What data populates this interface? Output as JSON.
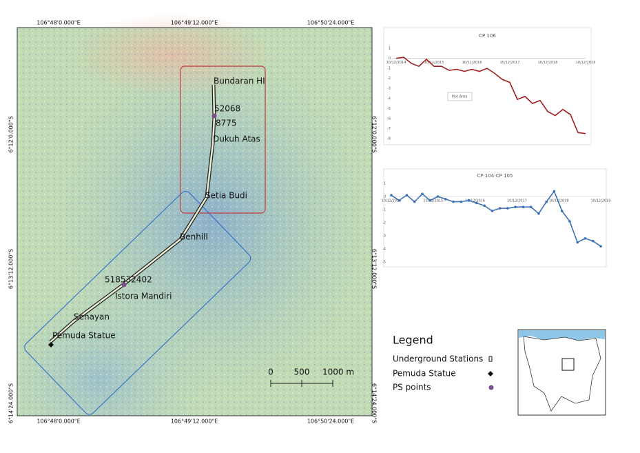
{
  "map": {
    "top_labels": [
      "106°48'0.000\"E",
      "106°49'12.000\"E",
      "106°50'24.000\"E"
    ],
    "bottom_labels": [
      "106°48'0.000\"E",
      "106°49'12.000\"E",
      "106°50'24.000\"E"
    ],
    "left_labels": [
      "6°12'0.000\"S",
      "6°13'12.000\"S",
      "6°14'24.000\"S"
    ],
    "right_labels": [
      "6°12'0.000\"S",
      "6°13'12.000\"S",
      "6°14'24.000\"S"
    ],
    "stations": [
      "Bundaran HI",
      "52068",
      "8775",
      "Dukuh Atas",
      "Setia Budi",
      "Benhill",
      "518532402",
      "Istora Mandiri",
      "Senayan",
      "Pemuda Statue"
    ],
    "scale": [
      "0",
      "500",
      "1000 m"
    ]
  },
  "legend": {
    "title": "Legend",
    "items": [
      "Underground Stations",
      "Pemuda Statue",
      "PS points"
    ]
  },
  "charts": [
    {
      "type": "line",
      "title": "CP 106",
      "annotation": "Plot Area",
      "xlabels": [
        "10/12/2014",
        "10/12/2015",
        "10/11/2016",
        "10/12/2017",
        "10/12/2018",
        "10/12/2019"
      ],
      "values": [
        0,
        0.1,
        -0.5,
        -0.8,
        -0.1,
        -0.8,
        -0.8,
        -1.2,
        -1.1,
        -1.3,
        -1.1,
        -1.3,
        -1,
        -1.5,
        -2.1,
        -2.4,
        -4.1,
        -3.8,
        -4.5,
        -4.2,
        -5.3,
        -5.7,
        -5.1,
        -5.6,
        -7.4,
        -7.5
      ],
      "color": "#a21d1d",
      "ylim": [
        -8,
        1
      ],
      "yticks": [
        1,
        0,
        -1,
        -2,
        -3,
        -4,
        -5,
        -6,
        -7,
        -8
      ]
    },
    {
      "type": "line",
      "title": "CP 104-CP 105",
      "xlabels": [
        "10/12/2014",
        "10/12/2015",
        "10/12/2016",
        "10/12/2017",
        "10/12/2018",
        "10/12/2019"
      ],
      "values": [
        0.1,
        -0.3,
        0.1,
        -0.4,
        0.2,
        -0.3,
        0,
        -0.2,
        -0.4,
        -0.4,
        -0.3,
        -0.5,
        -0.7,
        -1.1,
        -0.9,
        -0.9,
        -0.8,
        -0.8,
        -0.8,
        -1.3,
        -0.4,
        0.4,
        -1.1,
        -1.9,
        -3.5,
        -3.2,
        -3.4,
        -3.8
      ],
      "color": "#3d72b4",
      "ylim": [
        -5,
        1
      ],
      "yticks": [
        1,
        0,
        -1,
        -2,
        -3,
        -4,
        -5
      ]
    }
  ]
}
